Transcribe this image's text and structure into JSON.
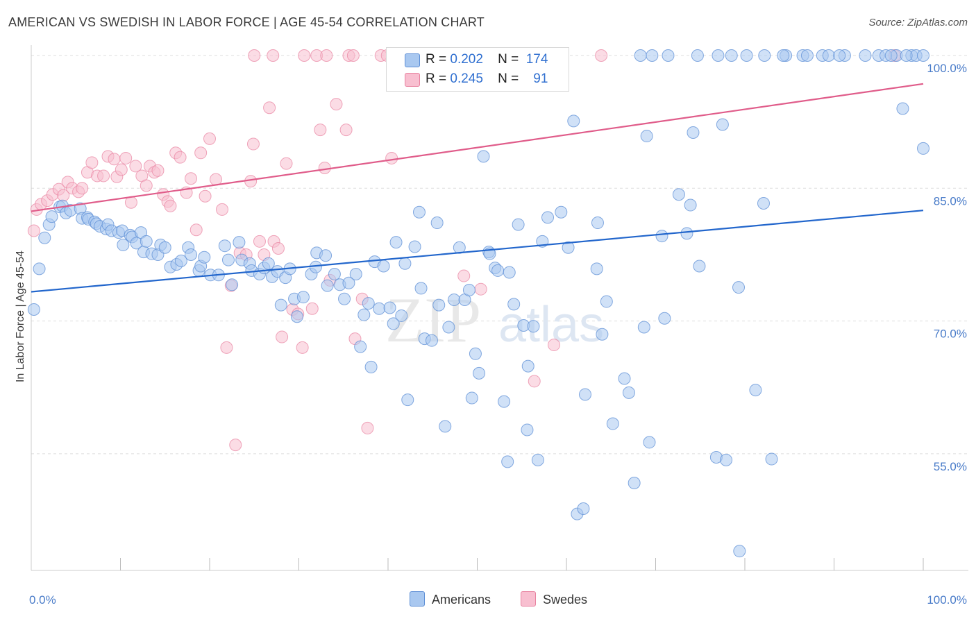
{
  "title": "AMERICAN VS SWEDISH IN LABOR FORCE | AGE 45-54 CORRELATION CHART",
  "source": "Source: ZipAtlas.com",
  "colors": {
    "americans_fill": "#a9c8f0",
    "americans_stroke": "#5e8fd6",
    "americans_line": "#2266cc",
    "swedes_fill": "#f8bfd0",
    "swedes_stroke": "#e8819f",
    "swedes_line": "#e05c8a",
    "axis_label": "#4a7cc9",
    "grid": "#dddddd"
  },
  "legend": {
    "rows": [
      {
        "r_label": "R =",
        "r_value": "0.202",
        "n_label": "N =",
        "n_value": "174"
      },
      {
        "r_label": "R =",
        "r_value": "0.245",
        "n_label": "N =",
        "n_value": "91"
      }
    ]
  },
  "bottom_legend": {
    "americans": "Americans",
    "swedes": "Swedes"
  },
  "chart_data": {
    "type": "scatter",
    "xlabel": "",
    "ylabel": "In Labor Force | Age 45-54",
    "xlim": [
      0,
      100
    ],
    "ylim": [
      40,
      102
    ],
    "x_tick_labels": [
      "0.0%",
      "100.0%"
    ],
    "y_ticks": [
      55,
      70,
      85,
      100
    ],
    "y_tick_labels": [
      "55.0%",
      "70.0%",
      "85.0%",
      "100.0%"
    ],
    "grid": "horizontal dashed",
    "watermark": "ZIPatlas",
    "series": [
      {
        "name": "Americans",
        "r": 0.202,
        "n": 174,
        "trend": {
          "x": [
            0,
            100
          ],
          "y": [
            73.3,
            82.5
          ]
        },
        "points": [
          [
            0.3,
            71.3
          ],
          [
            0.9,
            75.9
          ],
          [
            1.5,
            79.4
          ],
          [
            2.0,
            80.9
          ],
          [
            2.3,
            81.8
          ],
          [
            3.2,
            82.9
          ],
          [
            3.5,
            83.0
          ],
          [
            3.9,
            82.2
          ],
          [
            4.4,
            82.5
          ],
          [
            5.5,
            82.7
          ],
          [
            5.7,
            81.6
          ],
          [
            6.3,
            81.7
          ],
          [
            6.4,
            81.5
          ],
          [
            7.1,
            81.2
          ],
          [
            7.3,
            81.0
          ],
          [
            7.7,
            80.7
          ],
          [
            8.4,
            80.4
          ],
          [
            8.6,
            80.9
          ],
          [
            9.0,
            80.2
          ],
          [
            9.8,
            80.0
          ],
          [
            10.2,
            80.2
          ],
          [
            10.3,
            78.6
          ],
          [
            11.1,
            79.7
          ],
          [
            11.3,
            79.5
          ],
          [
            11.8,
            78.8
          ],
          [
            12.3,
            80.0
          ],
          [
            12.6,
            77.8
          ],
          [
            12.9,
            79.0
          ],
          [
            13.5,
            77.6
          ],
          [
            14.2,
            77.5
          ],
          [
            14.5,
            78.6
          ],
          [
            15.0,
            78.3
          ],
          [
            15.6,
            76.1
          ],
          [
            16.3,
            76.4
          ],
          [
            16.8,
            76.8
          ],
          [
            17.6,
            78.3
          ],
          [
            17.9,
            77.5
          ],
          [
            18.8,
            75.7
          ],
          [
            19.0,
            76.2
          ],
          [
            19.4,
            77.2
          ],
          [
            20.1,
            75.2
          ],
          [
            21.0,
            75.2
          ],
          [
            21.7,
            78.5
          ],
          [
            22.1,
            76.9
          ],
          [
            22.5,
            74.1
          ],
          [
            23.3,
            78.9
          ],
          [
            23.6,
            76.9
          ],
          [
            24.5,
            76.5
          ],
          [
            24.7,
            75.7
          ],
          [
            25.6,
            75.3
          ],
          [
            26.1,
            76.0
          ],
          [
            26.6,
            76.5
          ],
          [
            27.0,
            75.0
          ],
          [
            27.6,
            75.6
          ],
          [
            28.0,
            71.8
          ],
          [
            28.5,
            74.9
          ],
          [
            29.0,
            75.9
          ],
          [
            29.5,
            72.5
          ],
          [
            29.8,
            70.5
          ],
          [
            30.5,
            72.7
          ],
          [
            31.4,
            75.3
          ],
          [
            31.9,
            76.1
          ],
          [
            32.0,
            77.7
          ],
          [
            33.0,
            77.4
          ],
          [
            33.2,
            74.0
          ],
          [
            34.0,
            75.3
          ],
          [
            34.6,
            74.1
          ],
          [
            35.1,
            72.5
          ],
          [
            35.6,
            74.3
          ],
          [
            36.4,
            75.3
          ],
          [
            36.9,
            67.1
          ],
          [
            37.3,
            70.7
          ],
          [
            37.8,
            72.0
          ],
          [
            38.1,
            64.8
          ],
          [
            38.5,
            76.7
          ],
          [
            39.0,
            71.4
          ],
          [
            39.5,
            76.2
          ],
          [
            40.2,
            71.5
          ],
          [
            40.6,
            69.7
          ],
          [
            40.9,
            78.9
          ],
          [
            41.5,
            70.6
          ],
          [
            41.9,
            76.5
          ],
          [
            42.2,
            61.1
          ],
          [
            43.0,
            78.4
          ],
          [
            43.5,
            82.3
          ],
          [
            43.7,
            73.7
          ],
          [
            44.1,
            68.0
          ],
          [
            44.9,
            67.8
          ],
          [
            45.5,
            81.1
          ],
          [
            45.7,
            71.8
          ],
          [
            46.4,
            58.1
          ],
          [
            46.8,
            69.3
          ],
          [
            47.4,
            72.4
          ],
          [
            48.0,
            78.3
          ],
          [
            48.6,
            72.4
          ],
          [
            49.1,
            73.5
          ],
          [
            49.4,
            61.3
          ],
          [
            49.8,
            66.3
          ],
          [
            50.2,
            64.1
          ],
          [
            50.7,
            88.6
          ],
          [
            51.3,
            77.8
          ],
          [
            51.4,
            77.6
          ],
          [
            52.0,
            76.0
          ],
          [
            52.3,
            75.7
          ],
          [
            53.0,
            60.9
          ],
          [
            53.4,
            54.1
          ],
          [
            53.6,
            75.5
          ],
          [
            54.1,
            71.9
          ],
          [
            54.6,
            80.9
          ],
          [
            55.2,
            69.5
          ],
          [
            55.6,
            57.7
          ],
          [
            55.7,
            64.9
          ],
          [
            56.3,
            69.4
          ],
          [
            56.8,
            54.3
          ],
          [
            57.3,
            79.0
          ],
          [
            57.9,
            81.7
          ],
          [
            59.4,
            82.3
          ],
          [
            60.2,
            78.3
          ],
          [
            60.8,
            92.6
          ],
          [
            61.2,
            48.2
          ],
          [
            61.9,
            48.8
          ],
          [
            62.1,
            61.7
          ],
          [
            63.4,
            75.9
          ],
          [
            63.5,
            81.1
          ],
          [
            64.0,
            68.5
          ],
          [
            64.5,
            72.2
          ],
          [
            65.2,
            58.4
          ],
          [
            66.5,
            63.5
          ],
          [
            67.0,
            61.9
          ],
          [
            67.6,
            51.7
          ],
          [
            68.7,
            69.3
          ],
          [
            69.0,
            90.9
          ],
          [
            69.3,
            56.3
          ],
          [
            70.7,
            79.6
          ],
          [
            71.0,
            70.3
          ],
          [
            72.6,
            84.3
          ],
          [
            73.5,
            79.9
          ],
          [
            73.9,
            83.1
          ],
          [
            74.2,
            91.3
          ],
          [
            74.9,
            76.2
          ],
          [
            76.8,
            54.6
          ],
          [
            77.5,
            92.2
          ],
          [
            77.9,
            54.3
          ],
          [
            79.3,
            73.8
          ],
          [
            79.4,
            44.0
          ],
          [
            81.2,
            62.2
          ],
          [
            82.1,
            83.3
          ],
          [
            83.0,
            54.4
          ],
          [
            84.6,
            100.0
          ],
          [
            86.5,
            100.0
          ],
          [
            88.7,
            100.0
          ],
          [
            91.2,
            100.0
          ],
          [
            93.5,
            100.0
          ],
          [
            95.0,
            100.0
          ],
          [
            97.0,
            100.0
          ],
          [
            98.7,
            100.0
          ],
          [
            99.2,
            100.0
          ],
          [
            100.0,
            100.0
          ],
          [
            82.2,
            100.0
          ],
          [
            80.2,
            100.0
          ],
          [
            78.5,
            100.0
          ],
          [
            77.0,
            100.0
          ],
          [
            74.7,
            100.0
          ],
          [
            71.4,
            100.0
          ],
          [
            69.6,
            100.0
          ],
          [
            68.3,
            100.0
          ],
          [
            84.3,
            100.0
          ],
          [
            87.0,
            100.0
          ],
          [
            89.4,
            100.0
          ],
          [
            90.6,
            100.0
          ],
          [
            95.8,
            100.0
          ],
          [
            96.4,
            100.0
          ],
          [
            98.1,
            100.0
          ],
          [
            97.7,
            94.0
          ],
          [
            100.0,
            89.5
          ]
        ]
      },
      {
        "name": "Swedes",
        "r": 0.245,
        "n": 91,
        "trend": {
          "x": [
            0,
            100
          ],
          "y": [
            82.4,
            96.8
          ]
        },
        "points": [
          [
            0.3,
            80.2
          ],
          [
            0.6,
            82.6
          ],
          [
            1.1,
            83.2
          ],
          [
            1.8,
            83.6
          ],
          [
            2.4,
            84.3
          ],
          [
            3.1,
            84.9
          ],
          [
            3.6,
            84.2
          ],
          [
            4.1,
            85.7
          ],
          [
            4.6,
            85.0
          ],
          [
            5.3,
            84.6
          ],
          [
            5.7,
            85.0
          ],
          [
            6.3,
            86.8
          ],
          [
            6.8,
            87.9
          ],
          [
            7.4,
            86.4
          ],
          [
            8.1,
            86.4
          ],
          [
            8.6,
            88.6
          ],
          [
            9.3,
            88.3
          ],
          [
            9.6,
            86.3
          ],
          [
            10.1,
            87.1
          ],
          [
            10.6,
            88.4
          ],
          [
            11.2,
            83.4
          ],
          [
            11.7,
            87.5
          ],
          [
            12.4,
            86.4
          ],
          [
            12.9,
            85.3
          ],
          [
            13.3,
            87.5
          ],
          [
            13.8,
            86.8
          ],
          [
            14.2,
            87.0
          ],
          [
            14.8,
            84.3
          ],
          [
            15.3,
            83.5
          ],
          [
            15.6,
            83.0
          ],
          [
            16.2,
            89.0
          ],
          [
            16.7,
            88.5
          ],
          [
            17.4,
            84.5
          ],
          [
            17.9,
            86.1
          ],
          [
            18.5,
            80.3
          ],
          [
            19.0,
            89.0
          ],
          [
            19.5,
            84.1
          ],
          [
            20.0,
            90.6
          ],
          [
            20.7,
            86.0
          ],
          [
            21.4,
            82.6
          ],
          [
            21.9,
            67.0
          ],
          [
            22.4,
            74.0
          ],
          [
            22.9,
            56.0
          ],
          [
            23.4,
            77.7
          ],
          [
            24.1,
            77.5
          ],
          [
            24.6,
            85.8
          ],
          [
            24.9,
            90.0
          ],
          [
            25.6,
            79.0
          ],
          [
            26.1,
            77.5
          ],
          [
            26.7,
            94.1
          ],
          [
            27.2,
            79.0
          ],
          [
            27.7,
            78.2
          ],
          [
            28.1,
            68.2
          ],
          [
            28.6,
            87.8
          ],
          [
            29.3,
            71.3
          ],
          [
            29.9,
            70.8
          ],
          [
            30.4,
            67.0
          ],
          [
            31.5,
            71.4
          ],
          [
            32.4,
            91.6
          ],
          [
            32.9,
            87.3
          ],
          [
            33.5,
            74.6
          ],
          [
            34.2,
            94.5
          ],
          [
            35.3,
            91.6
          ],
          [
            36.3,
            68.0
          ],
          [
            37.1,
            72.5
          ],
          [
            37.7,
            57.9
          ],
          [
            40.4,
            88.4
          ],
          [
            48.5,
            75.1
          ],
          [
            50.4,
            73.6
          ],
          [
            56.4,
            63.2
          ],
          [
            58.6,
            67.3
          ],
          [
            25.0,
            100.0
          ],
          [
            27.1,
            100.0
          ],
          [
            30.6,
            100.0
          ],
          [
            32.0,
            100.0
          ],
          [
            33.1,
            100.0
          ],
          [
            35.6,
            100.0
          ],
          [
            36.1,
            100.0
          ],
          [
            39.2,
            100.0
          ],
          [
            39.9,
            100.0
          ],
          [
            40.7,
            100.0
          ],
          [
            41.4,
            100.0
          ],
          [
            42.5,
            100.0
          ],
          [
            43.2,
            100.0
          ],
          [
            44.4,
            100.0
          ],
          [
            45.1,
            100.0
          ],
          [
            45.6,
            100.0
          ],
          [
            53.2,
            100.0
          ],
          [
            54.7,
            100.0
          ],
          [
            63.9,
            100.0
          ],
          [
            96.8,
            100.0
          ]
        ]
      }
    ]
  }
}
